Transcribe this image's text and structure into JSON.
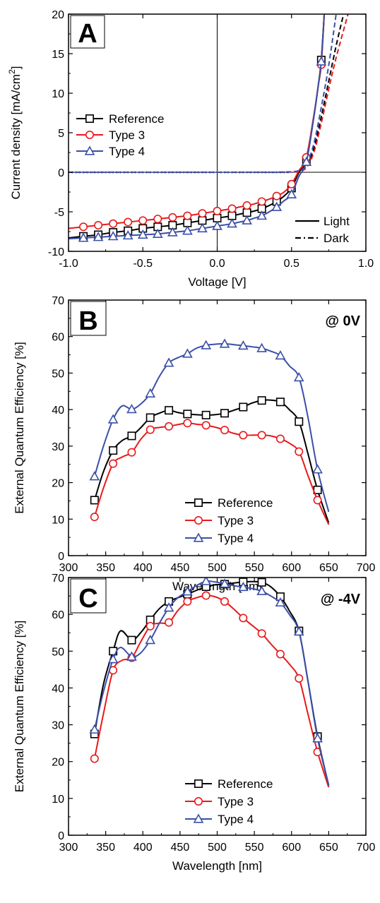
{
  "chart_data": [
    {
      "type": "line",
      "panel": "A",
      "xlabel": "Voltage [V]",
      "ylabel_main": "Current density [mA/cm",
      "ylabel_sup": "2",
      "ylabel_end": "]",
      "xlim": [
        -1.0,
        1.0
      ],
      "ylim": [
        -10,
        20
      ],
      "xticks": [
        -1.0,
        -0.5,
        0.0,
        0.5,
        1.0
      ],
      "xtick_labels": [
        "-1.0",
        "-0.5",
        "0.0",
        "0.5",
        "1.0"
      ],
      "yticks": [
        -10,
        -5,
        0,
        5,
        10,
        15,
        20
      ],
      "ytick_labels": [
        "-10",
        "-5",
        "0",
        "5",
        "10",
        "15",
        "20"
      ],
      "zero_lines": true,
      "legend_position": "middle-left",
      "style_legend": [
        {
          "label": "Light",
          "dash": "solid"
        },
        {
          "label": "Dark",
          "dash": "dashdot"
        }
      ],
      "series": [
        {
          "name": "Reference",
          "color": "#000000",
          "marker": "square",
          "light_x": [
            -1.0,
            -0.9,
            -0.8,
            -0.7,
            -0.6,
            -0.5,
            -0.4,
            -0.3,
            -0.2,
            -0.1,
            0.0,
            0.1,
            0.15,
            0.2,
            0.25,
            0.3,
            0.35,
            0.4,
            0.45,
            0.5,
            0.55,
            0.6,
            0.65,
            0.68,
            0.7,
            0.72
          ],
          "light_y": [
            -8.3,
            -8.1,
            -7.9,
            -7.6,
            -7.4,
            -7.1,
            -6.9,
            -6.7,
            -6.4,
            -6.1,
            -5.8,
            -5.5,
            -5.3,
            -5.1,
            -4.9,
            -4.6,
            -4.2,
            -3.7,
            -3.0,
            -2.0,
            0.0,
            1.5,
            7.0,
            11.0,
            14.2,
            20.0
          ],
          "light_marker_x": [
            -0.9,
            -0.8,
            -0.7,
            -0.6,
            -0.5,
            -0.4,
            -0.3,
            -0.2,
            -0.1,
            0.0,
            0.1,
            0.2,
            0.3,
            0.4,
            0.5,
            0.6,
            0.7
          ],
          "dark_x": [
            -1.0,
            -0.5,
            0.0,
            0.3,
            0.45,
            0.55,
            0.6,
            0.65,
            0.7,
            0.75,
            0.8,
            0.85
          ],
          "dark_y": [
            0,
            0,
            0,
            0,
            0.02,
            0.15,
            0.8,
            3.0,
            7.0,
            11.5,
            16.0,
            20.0
          ]
        },
        {
          "name": "Type 3",
          "color": "#e8191b",
          "marker": "circle",
          "light_x": [
            -1.0,
            -0.9,
            -0.8,
            -0.7,
            -0.6,
            -0.5,
            -0.4,
            -0.3,
            -0.2,
            -0.1,
            0.0,
            0.1,
            0.15,
            0.2,
            0.25,
            0.3,
            0.35,
            0.4,
            0.45,
            0.5,
            0.55,
            0.6,
            0.65,
            0.68,
            0.7,
            0.72
          ],
          "light_y": [
            -7.1,
            -6.9,
            -6.7,
            -6.5,
            -6.3,
            -6.1,
            -5.9,
            -5.7,
            -5.5,
            -5.2,
            -4.9,
            -4.6,
            -4.4,
            -4.2,
            -4.0,
            -3.7,
            -3.4,
            -3.0,
            -2.5,
            -1.5,
            0.2,
            1.9,
            7.2,
            11.0,
            13.6,
            20.0
          ],
          "light_marker_x": [
            -0.9,
            -0.8,
            -0.7,
            -0.6,
            -0.5,
            -0.4,
            -0.3,
            -0.2,
            -0.1,
            0.0,
            0.1,
            0.2,
            0.3,
            0.4,
            0.5,
            0.6,
            0.7
          ],
          "dark_x": [
            -1.0,
            -0.5,
            0.0,
            0.3,
            0.45,
            0.55,
            0.6,
            0.65,
            0.7,
            0.75,
            0.8,
            0.88
          ],
          "dark_y": [
            0,
            0,
            0,
            0,
            0.02,
            0.12,
            0.6,
            2.5,
            6.2,
            10.5,
            14.5,
            20.0
          ]
        },
        {
          "name": "Type 4",
          "color": "#3a4fa8",
          "marker": "triangle",
          "light_x": [
            -1.0,
            -0.9,
            -0.8,
            -0.7,
            -0.6,
            -0.5,
            -0.4,
            -0.3,
            -0.2,
            -0.1,
            0.0,
            0.1,
            0.15,
            0.2,
            0.25,
            0.3,
            0.35,
            0.4,
            0.45,
            0.5,
            0.55,
            0.6,
            0.65,
            0.68,
            0.7,
            0.72
          ],
          "light_y": [
            -8.4,
            -8.3,
            -8.2,
            -8.1,
            -8.0,
            -7.9,
            -7.8,
            -7.6,
            -7.4,
            -7.1,
            -6.8,
            -6.5,
            -6.3,
            -6.1,
            -5.8,
            -5.5,
            -5.0,
            -4.4,
            -3.6,
            -2.8,
            -0.5,
            1.3,
            7.0,
            11.0,
            14.0,
            20.0
          ],
          "light_marker_x": [
            -0.9,
            -0.8,
            -0.7,
            -0.6,
            -0.5,
            -0.4,
            -0.3,
            -0.2,
            -0.1,
            0.0,
            0.1,
            0.2,
            0.3,
            0.4,
            0.5,
            0.6,
            0.7
          ],
          "dark_x": [
            -1.0,
            -0.5,
            0.0,
            0.3,
            0.45,
            0.55,
            0.6,
            0.65,
            0.7,
            0.75,
            0.8
          ],
          "dark_y": [
            0,
            0,
            0,
            0,
            0.03,
            0.2,
            1.0,
            3.6,
            8.2,
            13.5,
            20.0
          ]
        }
      ]
    },
    {
      "type": "line",
      "panel": "B",
      "annotation": "@ 0V",
      "xlabel": "Wavelength [nm]",
      "ylabel": "External Quantum Efficiency [%]",
      "xlim": [
        300,
        700
      ],
      "ylim": [
        0,
        70
      ],
      "xticks": [
        300,
        350,
        400,
        450,
        500,
        550,
        600,
        650,
        700
      ],
      "xtick_labels": [
        "300",
        "350",
        "400",
        "450",
        "500",
        "550",
        "600",
        "650",
        "700"
      ],
      "yticks": [
        0,
        10,
        20,
        30,
        40,
        50,
        60,
        70
      ],
      "ytick_labels": [
        "0",
        "10",
        "20",
        "30",
        "40",
        "50",
        "60",
        "70"
      ],
      "legend_position": "bottom-center",
      "series": [
        {
          "name": "Reference",
          "color": "#000000",
          "marker": "square",
          "x": [
            335,
            347,
            360,
            372,
            385,
            397,
            410,
            422,
            435,
            447,
            460,
            472,
            485,
            497,
            510,
            522,
            535,
            547,
            560,
            572,
            585,
            597,
            610,
            622,
            635,
            650
          ],
          "y": [
            15.2,
            23,
            28.8,
            31.5,
            32.8,
            35,
            37.8,
            39,
            39.8,
            39.2,
            38.8,
            38.6,
            38.5,
            38.6,
            39,
            39.8,
            40.7,
            41.8,
            42.5,
            42.6,
            42.1,
            40,
            36.7,
            28,
            18,
            9
          ],
          "marker_x": [
            335,
            360,
            385,
            410,
            435,
            460,
            485,
            510,
            535,
            560,
            585,
            610,
            635
          ]
        },
        {
          "name": "Type 3",
          "color": "#e8191b",
          "marker": "circle",
          "x": [
            335,
            347,
            360,
            372,
            385,
            397,
            410,
            422,
            435,
            447,
            460,
            472,
            485,
            497,
            510,
            522,
            535,
            547,
            560,
            572,
            585,
            597,
            610,
            622,
            635,
            650
          ],
          "y": [
            10.6,
            18.5,
            25.2,
            27,
            28.3,
            31.8,
            34.5,
            35.1,
            35.4,
            35.9,
            36.3,
            36,
            35.7,
            35.2,
            34.4,
            33.5,
            33,
            33,
            33,
            32.8,
            32,
            30.8,
            28.5,
            22,
            15.2,
            8.5
          ],
          "marker_x": [
            335,
            360,
            385,
            410,
            435,
            460,
            485,
            510,
            535,
            560,
            585,
            610,
            635
          ]
        },
        {
          "name": "Type 4",
          "color": "#3a4fa8",
          "marker": "triangle",
          "x": [
            335,
            347,
            360,
            372,
            385,
            397,
            410,
            422,
            435,
            447,
            460,
            472,
            485,
            497,
            510,
            522,
            535,
            547,
            560,
            572,
            585,
            597,
            610,
            622,
            635,
            650
          ],
          "y": [
            21.7,
            30,
            37.3,
            41,
            40.1,
            41.5,
            44.4,
            49,
            52.8,
            54.2,
            55.3,
            56.8,
            57.6,
            57.9,
            58,
            57.8,
            57.5,
            57.2,
            56.8,
            56,
            54.8,
            52,
            48.8,
            38,
            23.6,
            12
          ],
          "marker_x": [
            335,
            360,
            385,
            410,
            435,
            460,
            485,
            510,
            535,
            560,
            585,
            610,
            635
          ]
        }
      ]
    },
    {
      "type": "line",
      "panel": "C",
      "annotation": "@ -4V",
      "xlabel": "Wavelength [nm]",
      "ylabel": "External Quantum Efficiency [%]",
      "xlim": [
        300,
        700
      ],
      "ylim": [
        0,
        70
      ],
      "xticks": [
        300,
        350,
        400,
        450,
        500,
        550,
        600,
        650,
        700
      ],
      "xtick_labels": [
        "300",
        "350",
        "400",
        "450",
        "500",
        "550",
        "600",
        "650",
        "700"
      ],
      "yticks": [
        0,
        10,
        20,
        30,
        40,
        50,
        60,
        70
      ],
      "ytick_labels": [
        "0",
        "10",
        "20",
        "30",
        "40",
        "50",
        "60",
        "70"
      ],
      "legend_position": "bottom-center",
      "series": [
        {
          "name": "Reference",
          "color": "#000000",
          "marker": "square",
          "x": [
            335,
            347,
            360,
            370,
            385,
            397,
            410,
            422,
            435,
            447,
            460,
            472,
            485,
            497,
            510,
            522,
            535,
            547,
            560,
            572,
            585,
            597,
            610,
            622,
            635,
            650
          ],
          "y": [
            27.5,
            41,
            50,
            55.5,
            53,
            55,
            58.5,
            61.5,
            63.5,
            64.5,
            65.5,
            66.5,
            67.5,
            68,
            68.2,
            68.5,
            68.8,
            68.9,
            68.7,
            67.5,
            64.8,
            61,
            55.5,
            42,
            26.8,
            13.5
          ],
          "marker_x": [
            335,
            360,
            385,
            410,
            435,
            460,
            485,
            510,
            535,
            560,
            585,
            610,
            635
          ]
        },
        {
          "name": "Type 3",
          "color": "#e8191b",
          "marker": "circle",
          "x": [
            335,
            347,
            360,
            372,
            385,
            397,
            410,
            422,
            435,
            447,
            460,
            472,
            485,
            497,
            510,
            522,
            535,
            547,
            560,
            572,
            585,
            597,
            610,
            622,
            635,
            650
          ],
          "y": [
            20.8,
            33,
            44.8,
            47.5,
            48.2,
            52.5,
            56.8,
            57.6,
            57.8,
            61,
            63.5,
            64.5,
            65.1,
            64.8,
            63.5,
            61.5,
            59,
            57,
            54.8,
            52,
            49.2,
            46.5,
            42.6,
            33,
            22.6,
            13
          ],
          "marker_x": [
            335,
            360,
            385,
            410,
            435,
            460,
            485,
            510,
            535,
            560,
            585,
            610,
            635
          ]
        },
        {
          "name": "Type 4",
          "color": "#3a4fa8",
          "marker": "triangle",
          "x": [
            335,
            347,
            360,
            370,
            385,
            397,
            410,
            422,
            435,
            447,
            460,
            472,
            485,
            497,
            510,
            522,
            535,
            547,
            560,
            572,
            585,
            597,
            610,
            622,
            635,
            650
          ],
          "y": [
            28.7,
            39,
            47.8,
            51,
            48.5,
            49.5,
            53,
            57.5,
            61.8,
            64.5,
            66.2,
            67.8,
            69,
            68.8,
            68.3,
            67.8,
            67.4,
            67,
            66.3,
            65,
            63.2,
            60,
            55.3,
            42,
            26.3,
            13.5
          ],
          "marker_x": [
            335,
            360,
            385,
            410,
            435,
            460,
            485,
            510,
            535,
            560,
            585,
            610,
            635
          ]
        }
      ]
    }
  ]
}
